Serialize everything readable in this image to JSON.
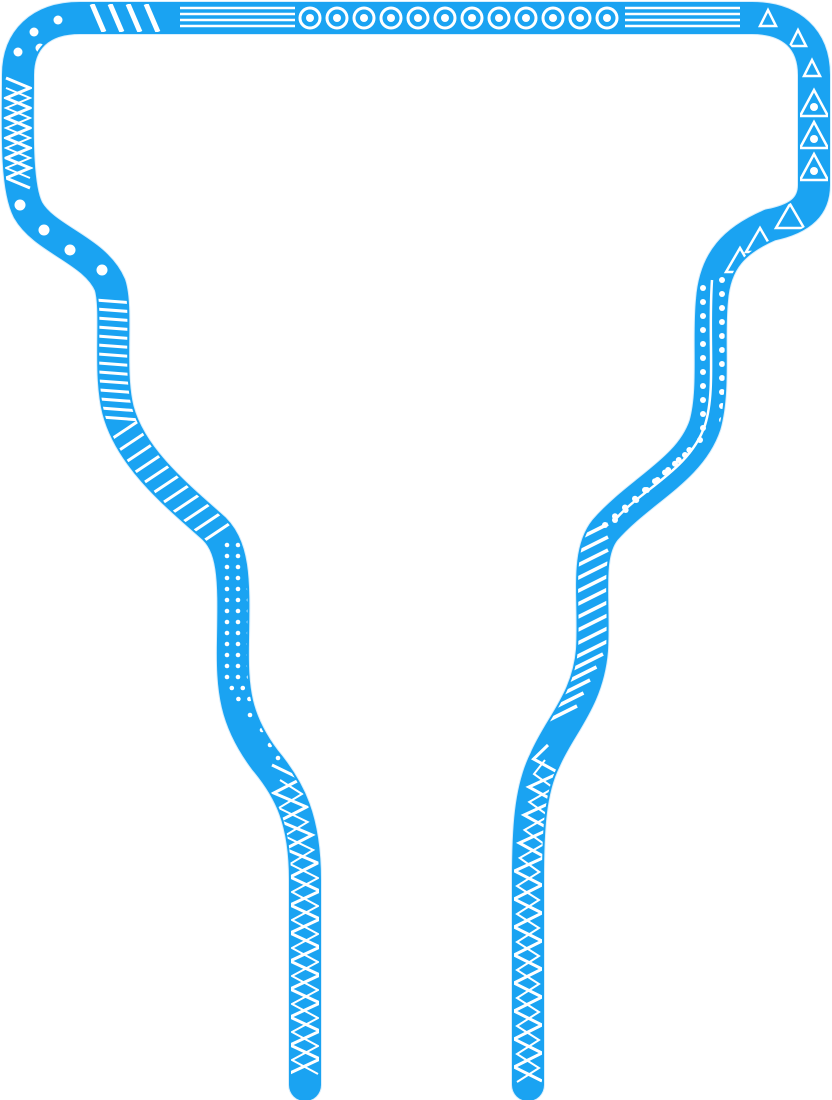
{
  "frame": {
    "accent_color": "#1aa3f2",
    "pattern_color": "#ffffff",
    "background_color": "#ffffff",
    "motifs": [
      "zigzag-pattern",
      "dot-pattern",
      "stripe-pattern",
      "circle-pattern",
      "triangle-pattern"
    ]
  }
}
